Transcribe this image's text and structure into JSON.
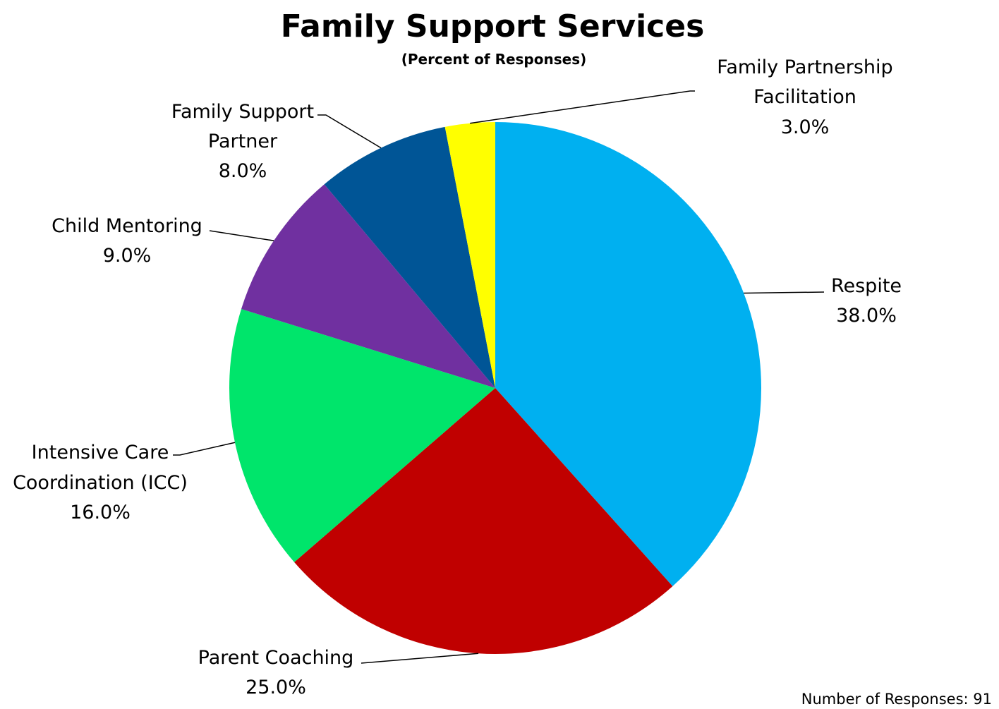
{
  "chart_data": {
    "type": "pie",
    "title": "Family Support Services",
    "subtitle": "(Percent of Responses)",
    "unit": "%",
    "slices": [
      {
        "label": "Respite",
        "value": 38.0,
        "display": "38.0%",
        "color": "#00b0f0"
      },
      {
        "label": "Parent Coaching",
        "value": 25.0,
        "display": "25.0%",
        "color": "#c00000"
      },
      {
        "label": "Intensive Care Coordination (ICC)",
        "value": 16.0,
        "display": "16.0%",
        "color": "#00e56b"
      },
      {
        "label": "Child Mentoring",
        "value": 9.0,
        "display": "9.0%",
        "color": "#7030a0"
      },
      {
        "label": "Family Support Partner",
        "value": 8.0,
        "display": "8.0%",
        "color": "#005596"
      },
      {
        "label": "Family Partnership Facilitation",
        "value": 3.0,
        "display": "3.0%",
        "color": "#ffff00"
      }
    ],
    "start": "12 o'clock",
    "direction": "clockwise",
    "legend": "none",
    "data_labels": "outside with leader lines",
    "footnote": "Number of Responses: 91"
  }
}
